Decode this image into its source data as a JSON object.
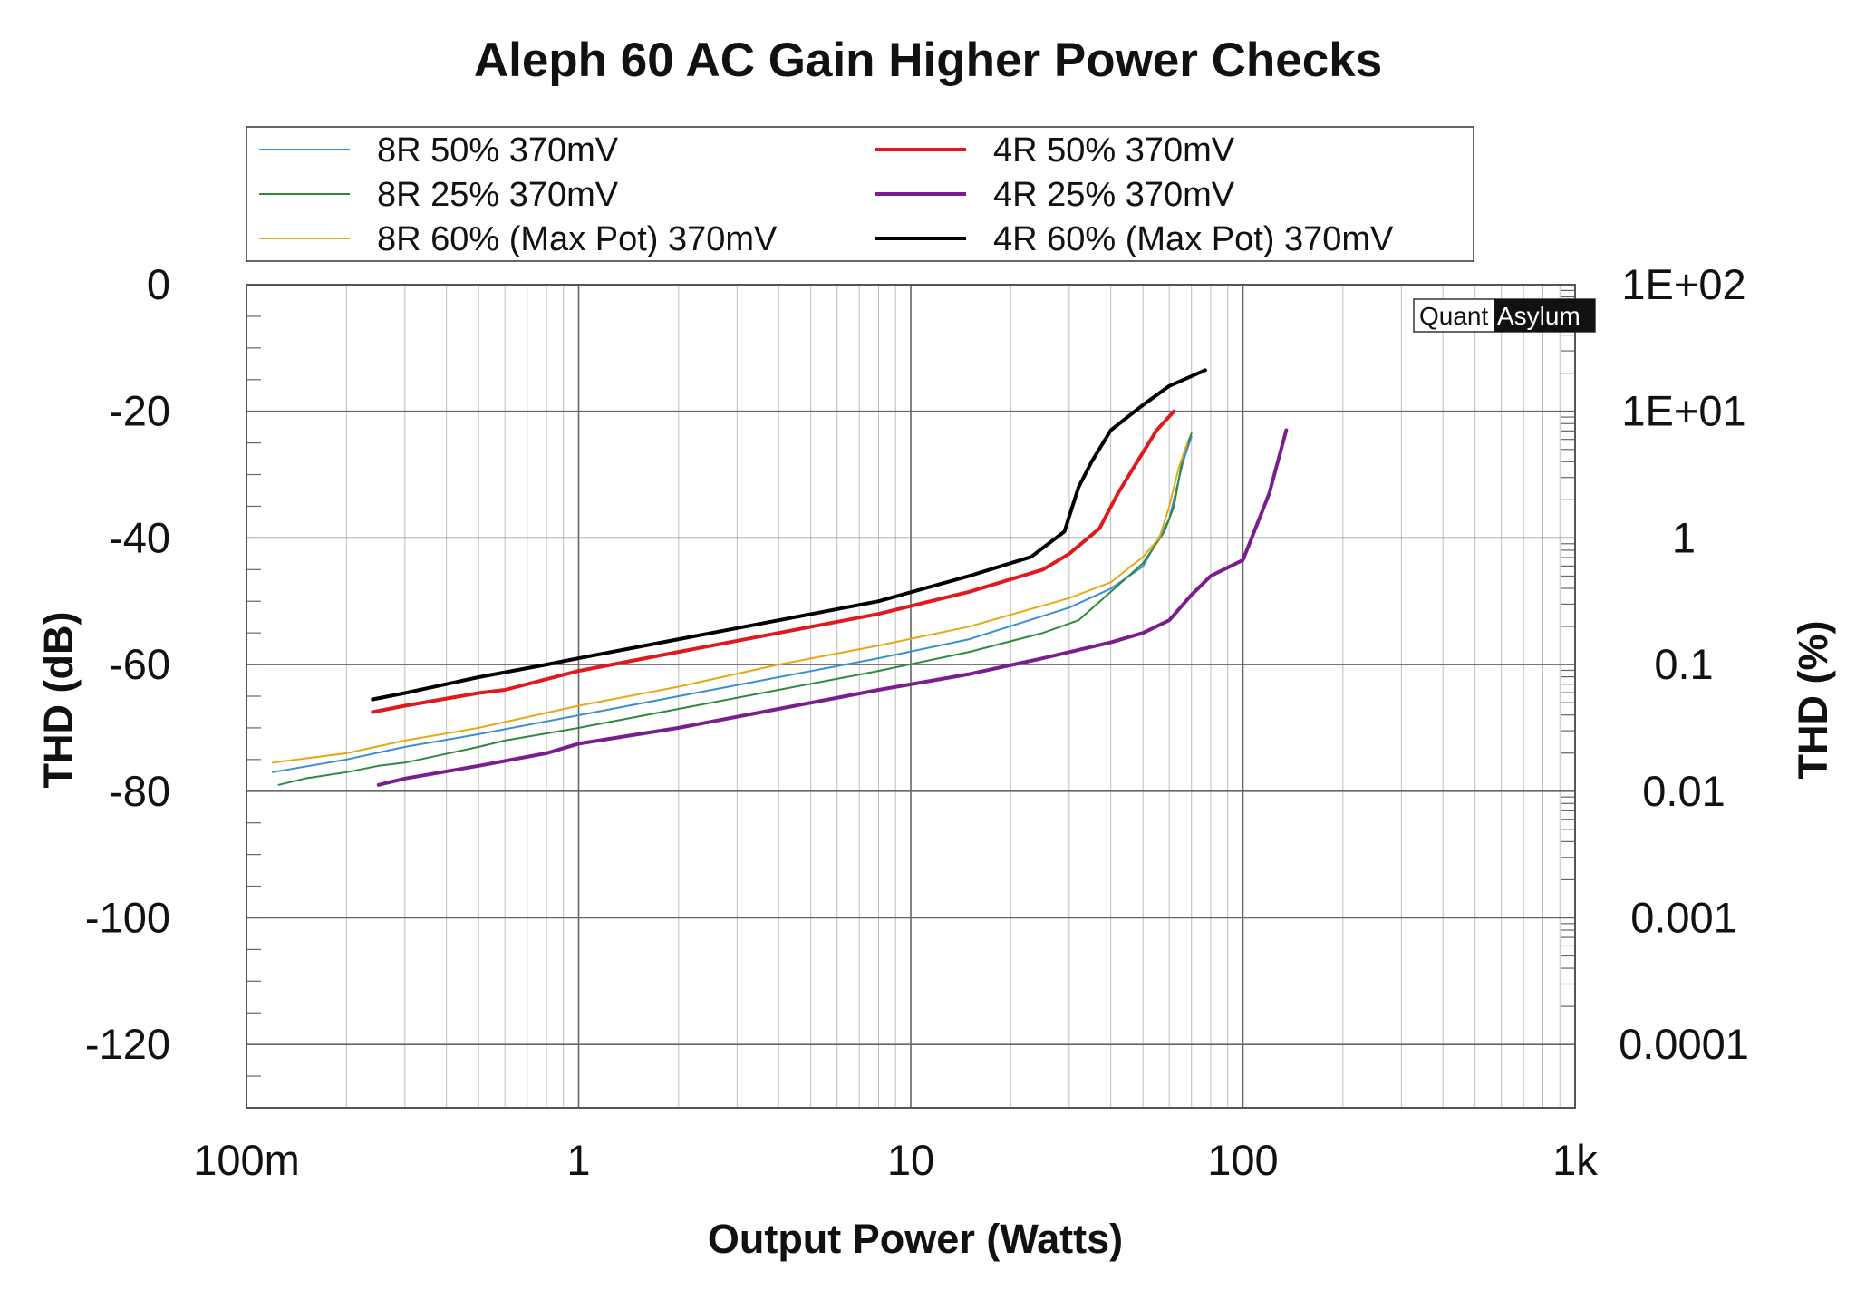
{
  "chart_data": {
    "type": "line",
    "title": "Aleph 60 AC Gain Higher Power Checks",
    "xlabel": "Output Power (Watts)",
    "ylabel": "THD (dB)",
    "y2label": "THD (%)",
    "x_scale": "log",
    "xlim": [
      0.1,
      1000
    ],
    "ylim": [
      -130,
      0
    ],
    "x_tick_labels": [
      "100m",
      "1",
      "10",
      "100",
      "1k"
    ],
    "y_tick_labels": [
      "0",
      "-20",
      "-40",
      "-60",
      "-80",
      "-100",
      "-120"
    ],
    "y2_tick_labels": [
      "1E+02",
      "1E+01",
      "1",
      "0.1",
      "0.01",
      "0.001",
      "0.0001"
    ],
    "grid": true,
    "legend_position": "top",
    "brand": {
      "part1": "Quant",
      "part2": "Asylum"
    },
    "series": [
      {
        "name": "8R 50% 370mV",
        "color": "#3a8fd0",
        "width": 2,
        "points": [
          [
            0.12,
            -77
          ],
          [
            0.2,
            -75
          ],
          [
            0.3,
            -73
          ],
          [
            0.5,
            -71
          ],
          [
            1,
            -68
          ],
          [
            2,
            -65
          ],
          [
            4,
            -62
          ],
          [
            8,
            -59
          ],
          [
            15,
            -56
          ],
          [
            30,
            -51
          ],
          [
            40,
            -48
          ],
          [
            50,
            -44.5
          ],
          [
            60,
            -37
          ],
          [
            66,
            -28
          ],
          [
            70,
            -24
          ]
        ]
      },
      {
        "name": "8R 25% 370mV",
        "color": "#2e8b3a",
        "width": 2,
        "points": [
          [
            0.125,
            -79
          ],
          [
            0.15,
            -78
          ],
          [
            0.2,
            -77
          ],
          [
            0.25,
            -76
          ],
          [
            0.3,
            -75.5
          ],
          [
            0.5,
            -73
          ],
          [
            0.6,
            -72
          ],
          [
            1,
            -70
          ],
          [
            2,
            -67
          ],
          [
            4,
            -64
          ],
          [
            8,
            -61
          ],
          [
            15,
            -58
          ],
          [
            25,
            -55
          ],
          [
            32,
            -53
          ],
          [
            40,
            -48.5
          ],
          [
            50,
            -44
          ],
          [
            58,
            -39
          ],
          [
            62,
            -35
          ],
          [
            66,
            -27
          ],
          [
            70,
            -23.5
          ]
        ]
      },
      {
        "name": "8R 60% (Max Pot) 370mV",
        "color": "#e6a817",
        "width": 2,
        "points": [
          [
            0.12,
            -75.5
          ],
          [
            0.2,
            -74
          ],
          [
            0.3,
            -72
          ],
          [
            0.5,
            -70
          ],
          [
            1,
            -66.5
          ],
          [
            2,
            -63.5
          ],
          [
            4,
            -60
          ],
          [
            8,
            -57
          ],
          [
            15,
            -54
          ],
          [
            30,
            -49.5
          ],
          [
            40,
            -47
          ],
          [
            50,
            -43
          ],
          [
            56,
            -40
          ],
          [
            60,
            -35
          ],
          [
            64,
            -29
          ],
          [
            68,
            -25
          ]
        ]
      },
      {
        "name": "4R 50% 370mV",
        "color": "#e0191f",
        "width": 4,
        "points": [
          [
            0.24,
            -67.5
          ],
          [
            0.3,
            -66.5
          ],
          [
            0.5,
            -64.5
          ],
          [
            0.6,
            -64
          ],
          [
            1,
            -61
          ],
          [
            2,
            -58
          ],
          [
            4,
            -55
          ],
          [
            8,
            -52
          ],
          [
            15,
            -48.5
          ],
          [
            25,
            -45
          ],
          [
            30,
            -42.5
          ],
          [
            37,
            -38.5
          ],
          [
            42,
            -33
          ],
          [
            48,
            -28
          ],
          [
            55,
            -23
          ],
          [
            62,
            -20
          ]
        ]
      },
      {
        "name": "4R 25% 370mV",
        "color": "#7a1d8f",
        "width": 4,
        "points": [
          [
            0.25,
            -79
          ],
          [
            0.3,
            -78
          ],
          [
            0.5,
            -76
          ],
          [
            0.8,
            -74
          ],
          [
            1,
            -72.5
          ],
          [
            2,
            -70
          ],
          [
            4,
            -67
          ],
          [
            8,
            -64
          ],
          [
            15,
            -61.5
          ],
          [
            25,
            -59
          ],
          [
            40,
            -56.5
          ],
          [
            50,
            -55
          ],
          [
            60,
            -53
          ],
          [
            70,
            -49
          ],
          [
            80,
            -46
          ],
          [
            100,
            -43.5
          ],
          [
            120,
            -33
          ],
          [
            135,
            -23
          ]
        ]
      },
      {
        "name": "4R 60% (Max Pot) 370mV",
        "color": "#000000",
        "width": 4,
        "points": [
          [
            0.24,
            -65.5
          ],
          [
            0.3,
            -64.5
          ],
          [
            0.5,
            -62
          ],
          [
            0.8,
            -60
          ],
          [
            1,
            -59
          ],
          [
            2,
            -56
          ],
          [
            4,
            -53
          ],
          [
            8,
            -50
          ],
          [
            15,
            -46
          ],
          [
            23,
            -43
          ],
          [
            29,
            -39
          ],
          [
            32,
            -32
          ],
          [
            35,
            -28
          ],
          [
            40,
            -23
          ],
          [
            50,
            -19
          ],
          [
            60,
            -16
          ],
          [
            77,
            -13.5
          ]
        ]
      }
    ]
  }
}
